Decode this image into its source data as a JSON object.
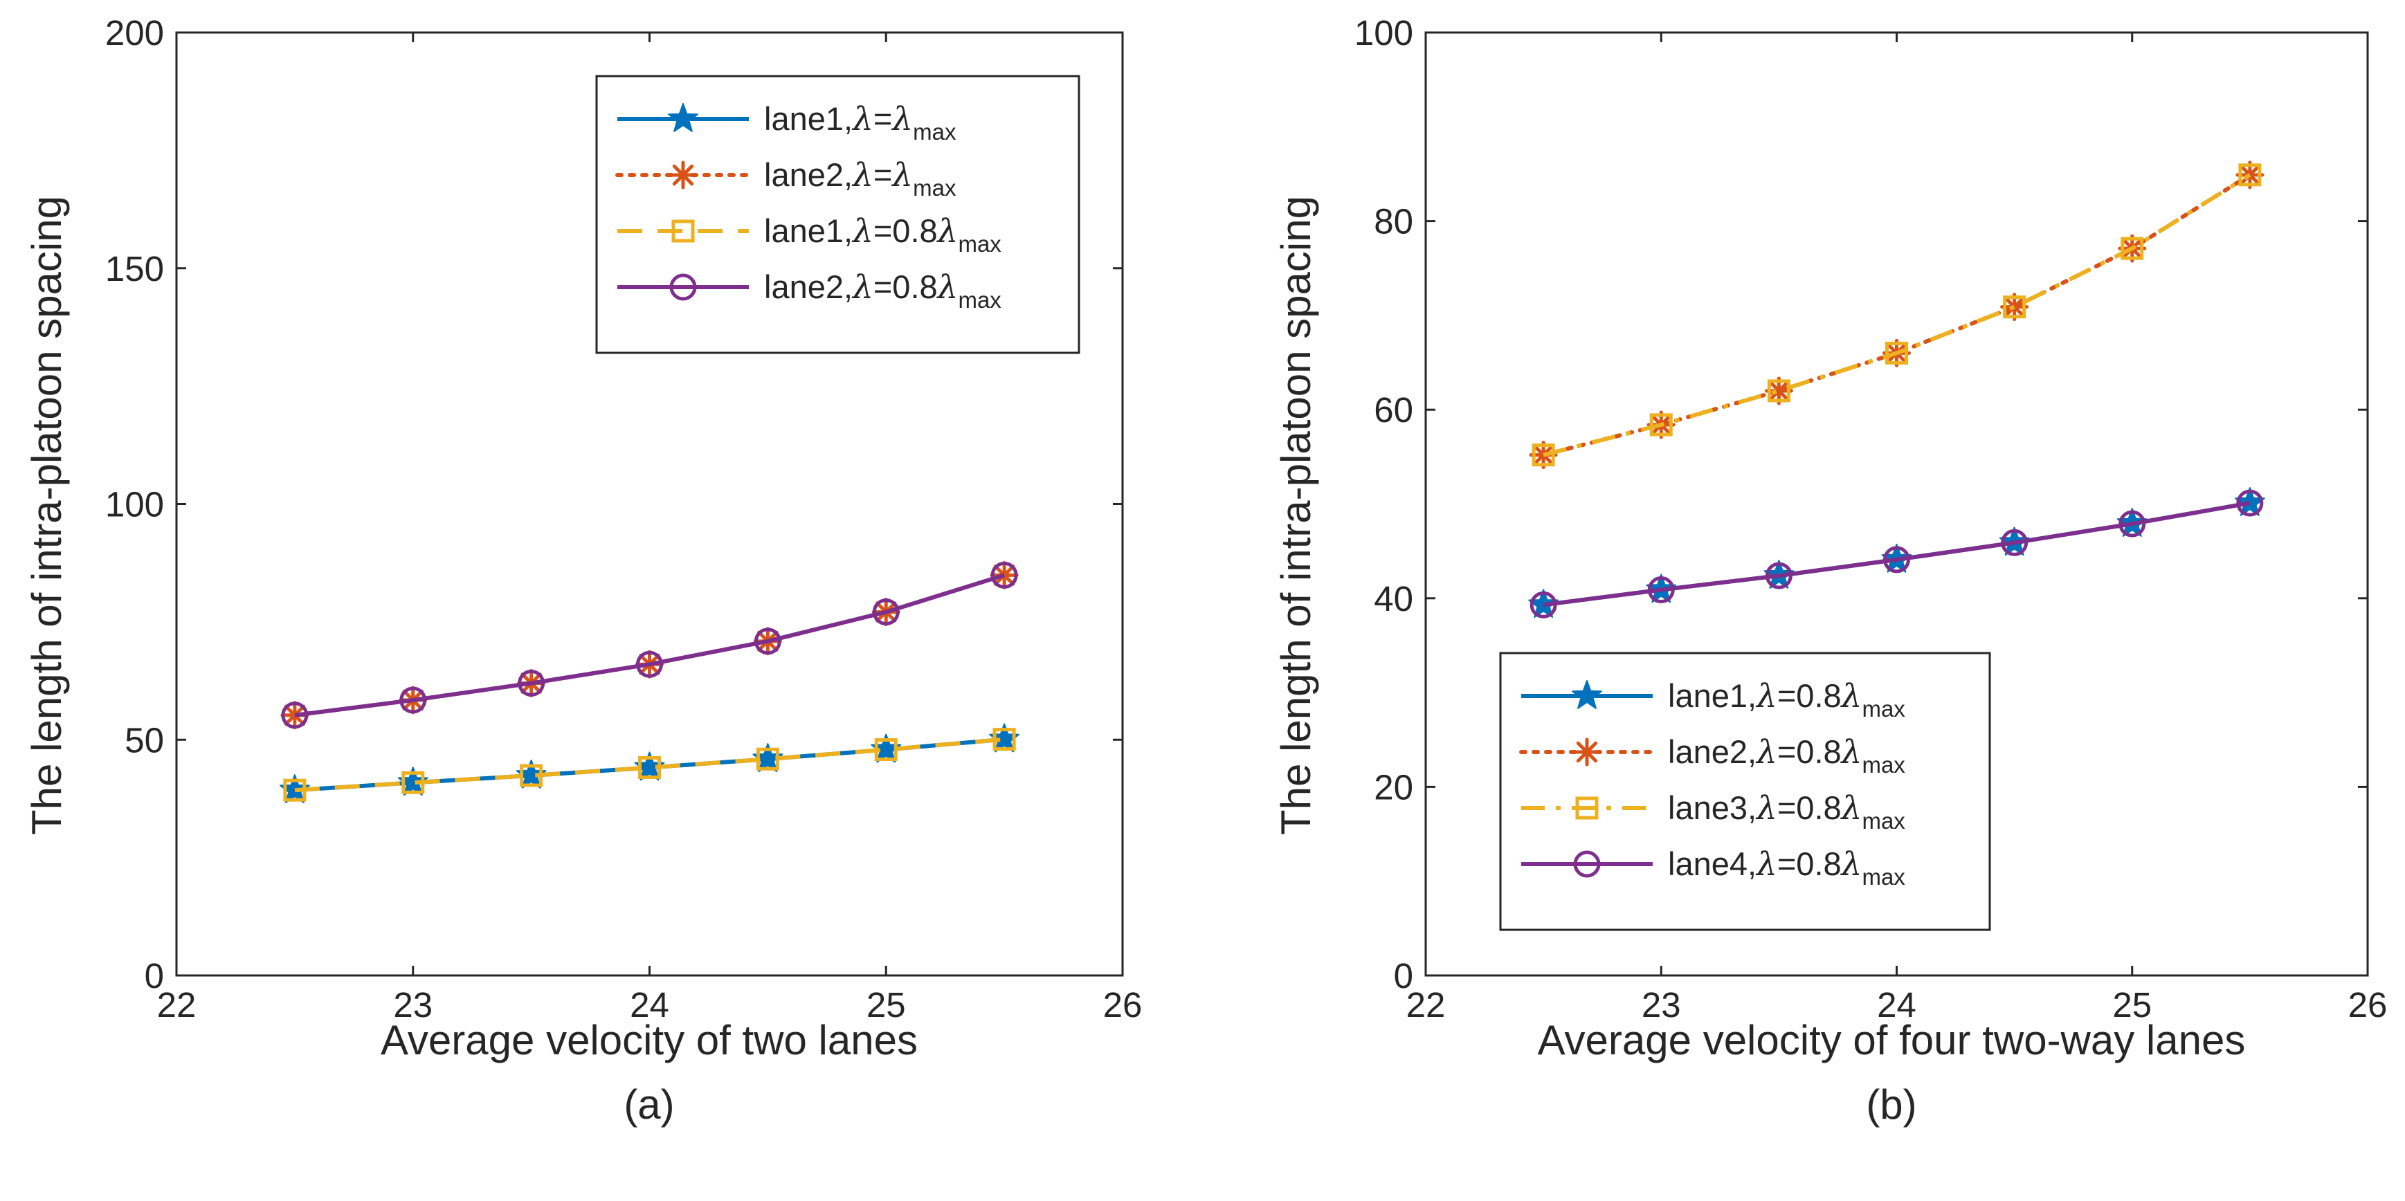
{
  "colors": {
    "blue": "#0072BD",
    "orange": "#D95319",
    "yellow": "#EDB120",
    "purple": "#7E2F8E",
    "axis": "#262626"
  },
  "chart_data": [
    {
      "type": "line",
      "caption": "(a)",
      "xlabel": "Average velocity of two lanes",
      "ylabel": "The length of intra-platoon spacing",
      "xlim": [
        22,
        26
      ],
      "ylim": [
        0,
        200
      ],
      "xticks": [
        "22",
        "23",
        "24",
        "25",
        "26"
      ],
      "yticks": [
        "0",
        "50",
        "100",
        "150",
        "200"
      ],
      "legend_position": "top-right",
      "x": [
        22.5,
        23,
        23.5,
        24,
        24.5,
        25,
        25.5
      ],
      "series": [
        {
          "name": "lane1",
          "label_prefix": "lane1,",
          "label_mid": "=",
          "label_coef": "",
          "label_sub": "max",
          "color_key": "blue",
          "line": "solid",
          "marker": "star",
          "values": [
            39.3,
            40.9,
            42.4,
            44.1,
            45.9,
            47.9,
            50.1
          ]
        },
        {
          "name": "lane2",
          "label_prefix": "lane2,",
          "label_mid": "=",
          "label_coef": "",
          "label_sub": "max",
          "color_key": "orange",
          "line": "dotted",
          "marker": "asterisk",
          "values": [
            55.2,
            58.4,
            62.0,
            66.0,
            70.9,
            77.1,
            84.9
          ]
        },
        {
          "name": "lane1-0.8",
          "label_prefix": "lane1,",
          "label_mid": "=0.8",
          "label_coef": "",
          "label_sub": "max",
          "color_key": "yellow",
          "line": "dashed",
          "marker": "square",
          "values": [
            39.3,
            40.9,
            42.4,
            44.1,
            45.9,
            47.9,
            50.1
          ]
        },
        {
          "name": "lane2-0.8",
          "label_prefix": "lane2,",
          "label_mid": "=0.8",
          "label_coef": "",
          "label_sub": "max",
          "color_key": "purple",
          "line": "solid",
          "marker": "circle",
          "values": [
            55.2,
            58.4,
            62.0,
            66.0,
            70.9,
            77.1,
            84.9
          ]
        }
      ]
    },
    {
      "type": "line",
      "caption": "(b)",
      "xlabel": "Average velocity of four two-way lanes",
      "ylabel": "The length of intra-platoon spacing",
      "xlim": [
        22,
        26
      ],
      "ylim": [
        0,
        100
      ],
      "xticks": [
        "22",
        "23",
        "24",
        "25",
        "26"
      ],
      "yticks": [
        "0",
        "20",
        "40",
        "60",
        "80",
        "100"
      ],
      "legend_position": "bottom-left",
      "x": [
        22.5,
        23,
        23.5,
        24,
        24.5,
        25,
        25.5
      ],
      "series": [
        {
          "name": "lane1",
          "label_prefix": "lane1,",
          "label_mid": "=0.8",
          "label_coef": "",
          "label_sub": "max",
          "color_key": "blue",
          "line": "solid",
          "marker": "star",
          "values": [
            39.3,
            40.9,
            42.4,
            44.1,
            45.9,
            47.9,
            50.1
          ]
        },
        {
          "name": "lane2",
          "label_prefix": "lane2,",
          "label_mid": "=0.8",
          "label_coef": "",
          "label_sub": "max",
          "color_key": "orange",
          "line": "dotted",
          "marker": "asterisk",
          "values": [
            55.2,
            58.4,
            62.0,
            66.0,
            70.9,
            77.1,
            84.9
          ]
        },
        {
          "name": "lane3",
          "label_prefix": "lane3,",
          "label_mid": "=0.8",
          "label_coef": "",
          "label_sub": "max",
          "color_key": "yellow",
          "line": "dashdot",
          "marker": "square",
          "values": [
            55.2,
            58.4,
            62.0,
            66.0,
            70.9,
            77.1,
            84.9
          ]
        },
        {
          "name": "lane4",
          "label_prefix": "lane4,",
          "label_mid": "=0.8",
          "label_coef": "",
          "label_sub": "max",
          "color_key": "purple",
          "line": "solid",
          "marker": "circle",
          "values": [
            39.3,
            40.9,
            42.4,
            44.1,
            45.9,
            47.9,
            50.1
          ]
        }
      ]
    }
  ]
}
